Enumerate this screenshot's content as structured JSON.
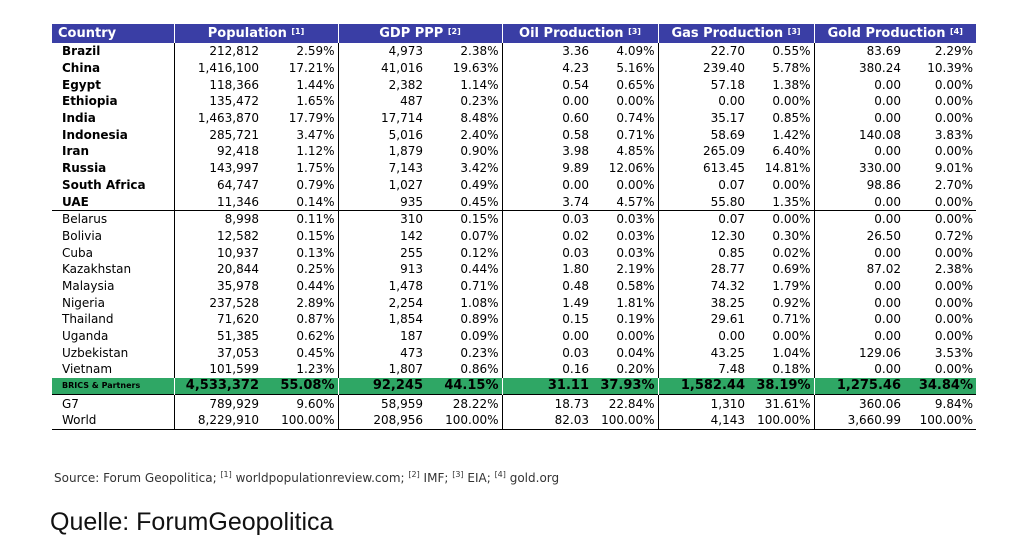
{
  "headers": [
    {
      "label": "Country",
      "ref": ""
    },
    {
      "label": "Population",
      "ref": "[1]"
    },
    {
      "label": "GDP PPP",
      "ref": "[2]"
    },
    {
      "label": "Oil Production",
      "ref": "[3]"
    },
    {
      "label": "Gas Production",
      "ref": "[3]"
    },
    {
      "label": "Gold Production",
      "ref": "[4]"
    }
  ],
  "brics": [
    [
      "Brazil",
      "212,812",
      "2.59%",
      "4,973",
      "2.38%",
      "3.36",
      "4.09%",
      "22.70",
      "0.55%",
      "83.69",
      "2.29%"
    ],
    [
      "China",
      "1,416,100",
      "17.21%",
      "41,016",
      "19.63%",
      "4.23",
      "5.16%",
      "239.40",
      "5.78%",
      "380.24",
      "10.39%"
    ],
    [
      "Egypt",
      "118,366",
      "1.44%",
      "2,382",
      "1.14%",
      "0.54",
      "0.65%",
      "57.18",
      "1.38%",
      "0.00",
      "0.00%"
    ],
    [
      "Ethiopia",
      "135,472",
      "1.65%",
      "487",
      "0.23%",
      "0.00",
      "0.00%",
      "0.00",
      "0.00%",
      "0.00",
      "0.00%"
    ],
    [
      "India",
      "1,463,870",
      "17.79%",
      "17,714",
      "8.48%",
      "0.60",
      "0.74%",
      "35.17",
      "0.85%",
      "0.00",
      "0.00%"
    ],
    [
      "Indonesia",
      "285,721",
      "3.47%",
      "5,016",
      "2.40%",
      "0.58",
      "0.71%",
      "58.69",
      "1.42%",
      "140.08",
      "3.83%"
    ],
    [
      "Iran",
      "92,418",
      "1.12%",
      "1,879",
      "0.90%",
      "3.98",
      "4.85%",
      "265.09",
      "6.40%",
      "0.00",
      "0.00%"
    ],
    [
      "Russia",
      "143,997",
      "1.75%",
      "7,143",
      "3.42%",
      "9.89",
      "12.06%",
      "613.45",
      "14.81%",
      "330.00",
      "9.01%"
    ],
    [
      "South Africa",
      "64,747",
      "0.79%",
      "1,027",
      "0.49%",
      "0.00",
      "0.00%",
      "0.07",
      "0.00%",
      "98.86",
      "2.70%"
    ],
    [
      "UAE",
      "11,346",
      "0.14%",
      "935",
      "0.45%",
      "3.74",
      "4.57%",
      "55.80",
      "1.35%",
      "0.00",
      "0.00%"
    ]
  ],
  "partners": [
    [
      "Belarus",
      "8,998",
      "0.11%",
      "310",
      "0.15%",
      "0.03",
      "0.03%",
      "0.07",
      "0.00%",
      "0.00",
      "0.00%"
    ],
    [
      "Bolivia",
      "12,582",
      "0.15%",
      "142",
      "0.07%",
      "0.02",
      "0.03%",
      "12.30",
      "0.30%",
      "26.50",
      "0.72%"
    ],
    [
      "Cuba",
      "10,937",
      "0.13%",
      "255",
      "0.12%",
      "0.03",
      "0.03%",
      "0.85",
      "0.02%",
      "0.00",
      "0.00%"
    ],
    [
      "Kazakhstan",
      "20,844",
      "0.25%",
      "913",
      "0.44%",
      "1.80",
      "2.19%",
      "28.77",
      "0.69%",
      "87.02",
      "2.38%"
    ],
    [
      "Malaysia",
      "35,978",
      "0.44%",
      "1,478",
      "0.71%",
      "0.48",
      "0.58%",
      "74.32",
      "1.79%",
      "0.00",
      "0.00%"
    ],
    [
      "Nigeria",
      "237,528",
      "2.89%",
      "2,254",
      "1.08%",
      "1.49",
      "1.81%",
      "38.25",
      "0.92%",
      "0.00",
      "0.00%"
    ],
    [
      "Thailand",
      "71,620",
      "0.87%",
      "1,854",
      "0.89%",
      "0.15",
      "0.19%",
      "29.61",
      "0.71%",
      "0.00",
      "0.00%"
    ],
    [
      "Uganda",
      "51,385",
      "0.62%",
      "187",
      "0.09%",
      "0.00",
      "0.00%",
      "0.00",
      "0.00%",
      "0.00",
      "0.00%"
    ],
    [
      "Uzbekistan",
      "37,053",
      "0.45%",
      "473",
      "0.23%",
      "0.03",
      "0.04%",
      "43.25",
      "1.04%",
      "129.06",
      "3.53%"
    ],
    [
      "Vietnam",
      "101,599",
      "1.23%",
      "1,807",
      "0.86%",
      "0.16",
      "0.20%",
      "7.48",
      "0.18%",
      "0.00",
      "0.00%"
    ]
  ],
  "total": [
    "BRICS & Partners",
    "4,533,372",
    "55.08%",
    "92,245",
    "44.15%",
    "31.11",
    "37.93%",
    "1,582.44",
    "38.19%",
    "1,275.46",
    "34.84%"
  ],
  "others": [
    [
      "G7",
      "789,929",
      "9.60%",
      "58,959",
      "28.22%",
      "18.73",
      "22.84%",
      "1,310",
      "31.61%",
      "360.06",
      "9.84%"
    ],
    [
      "World",
      "8,229,910",
      "100.00%",
      "208,956",
      "100.00%",
      "82.03",
      "100.00%",
      "4,143",
      "100.00%",
      "3,660.99",
      "100.00%"
    ]
  ],
  "source": {
    "prefix": "Source: Forum Geopolitica; ",
    "items": [
      {
        "ref": "[1]",
        "text": " worldpopulationreview.com; "
      },
      {
        "ref": "[2]",
        "text": " IMF; "
      },
      {
        "ref": "[3]",
        "text": " EIA; "
      },
      {
        "ref": "[4]",
        "text": " gold.org"
      }
    ]
  },
  "quelle": "Quelle: ForumGeopolitica"
}
